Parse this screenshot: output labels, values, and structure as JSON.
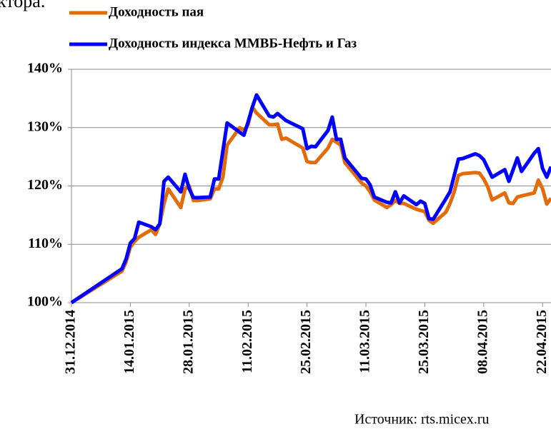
{
  "top_text": "ктора.",
  "chart_data": {
    "type": "line",
    "x": [
      "31.12.2014",
      "12.01.2015",
      "13.01.2015",
      "14.01.2015",
      "15.01.2015",
      "16.01.2015",
      "19.01.2015",
      "20.01.2015",
      "21.01.2015",
      "22.01.2015",
      "23.01.2015",
      "26.01.2015",
      "27.01.2015",
      "28.01.2015",
      "29.01.2015",
      "30.01.2015",
      "02.02.2015",
      "03.02.2015",
      "04.02.2015",
      "05.02.2015",
      "06.02.2015",
      "09.02.2015",
      "10.02.2015",
      "11.02.2015",
      "12.02.2015",
      "13.02.2015",
      "16.02.2015",
      "17.02.2015",
      "18.02.2015",
      "19.02.2015",
      "20.02.2015",
      "24.02.2015",
      "25.02.2015",
      "26.02.2015",
      "27.02.2015",
      "02.03.2015",
      "03.03.2015",
      "04.03.2015",
      "05.03.2015",
      "06.03.2015",
      "10.03.2015",
      "11.03.2015",
      "12.03.2015",
      "13.03.2015",
      "16.03.2015",
      "17.03.2015",
      "18.03.2015",
      "19.03.2015",
      "20.03.2015",
      "23.03.2015",
      "24.03.2015",
      "25.03.2015",
      "26.03.2015",
      "27.03.2015",
      "30.03.2015",
      "31.03.2015",
      "01.04.2015",
      "02.04.2015",
      "03.04.2015",
      "06.04.2015",
      "07.04.2015",
      "08.04.2015",
      "09.04.2015",
      "10.04.2015",
      "13.04.2015",
      "14.04.2015",
      "15.04.2015",
      "16.04.2015",
      "17.04.2015",
      "20.04.2015",
      "21.04.2015",
      "22.04.2015",
      "23.04.2015",
      "24.04.2015"
    ],
    "series": [
      {
        "name": "Доходность пая",
        "color": "#e36c09",
        "values": [
          100,
          105.4,
          107,
          109.5,
          110.5,
          111.2,
          112.5,
          111.7,
          113.5,
          117,
          119.5,
          116.3,
          119.5,
          120,
          117.5,
          117.5,
          117.8,
          119.5,
          119.5,
          121.5,
          127,
          130,
          129.5,
          130.5,
          133.5,
          132.5,
          130.5,
          130.5,
          130.6,
          128,
          128.2,
          126.5,
          124.2,
          124,
          124,
          126.5,
          128,
          127.5,
          127,
          124,
          120.5,
          120,
          119,
          117.6,
          116.3,
          116.8,
          117.5,
          117,
          117,
          116,
          115.8,
          115.6,
          114.1,
          113.6,
          115.5,
          117,
          119,
          121.8,
          122.1,
          122.3,
          122.2,
          121.2,
          119.8,
          117.6,
          118.8,
          117.1,
          117,
          118.1,
          118.3,
          118.8,
          121,
          119.5,
          116.9,
          117.9
        ]
      },
      {
        "name": "Доходность индекса ММВБ-Нефть и Газ",
        "color": "#0000ff",
        "values": [
          100,
          105.8,
          107.5,
          110.2,
          111,
          113.8,
          113,
          112.5,
          113.5,
          120.8,
          121.5,
          119,
          122,
          119.5,
          118,
          118,
          118.1,
          121.2,
          121.2,
          126,
          130.8,
          129.2,
          128.7,
          131,
          133.5,
          135.6,
          132,
          131.8,
          132.4,
          131.8,
          131.2,
          129.8,
          126.4,
          126.8,
          126.7,
          129.5,
          131.8,
          128,
          128,
          124.8,
          121.3,
          121.2,
          120.2,
          118.1,
          117.2,
          117.1,
          119,
          117.1,
          118.3,
          116.8,
          117.4,
          117,
          114.4,
          114.3,
          117.8,
          119,
          121.8,
          124.6,
          124.7,
          125.5,
          125.2,
          124.5,
          123,
          121.5,
          122.8,
          120.8,
          122.8,
          124.8,
          122.5,
          125.6,
          126.4,
          123,
          121.5,
          123.3
        ]
      }
    ],
    "xlim": [
      "31.12.2014",
      "24.04.2015"
    ],
    "xticks": [
      "31.12.2014",
      "14.01.2015",
      "28.01.2015",
      "11.02.2015",
      "25.02.2015",
      "11.03.2015",
      "25.03.2015",
      "08.04.2015",
      "22.04.2015"
    ],
    "ylim": [
      100,
      140
    ],
    "yticks": [
      {
        "value": 100,
        "label": "100%"
      },
      {
        "value": 110,
        "label": "110%"
      },
      {
        "value": 120,
        "label": "120%"
      },
      {
        "value": 130,
        "label": "130%"
      },
      {
        "value": 140,
        "label": "140%"
      }
    ],
    "grid": true,
    "source": "Источник: rts.micex.ru"
  }
}
